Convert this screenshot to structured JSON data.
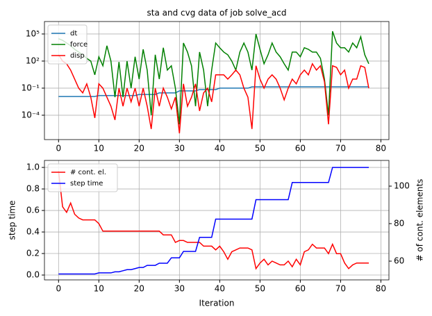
{
  "chart_data": [
    {
      "type": "line",
      "title": "sta and cvg data of job solve_acd",
      "x": [
        0,
        1,
        2,
        3,
        4,
        5,
        6,
        7,
        8,
        9,
        10,
        11,
        12,
        13,
        14,
        15,
        16,
        17,
        18,
        19,
        20,
        21,
        22,
        23,
        24,
        25,
        26,
        27,
        28,
        29,
        30,
        31,
        32,
        33,
        34,
        35,
        36,
        37,
        38,
        39,
        40,
        41,
        42,
        43,
        44,
        45,
        46,
        47,
        48,
        49,
        50,
        51,
        52,
        53,
        54,
        55,
        56,
        57,
        58,
        59,
        60,
        61,
        62,
        63,
        64,
        65,
        66,
        67,
        68,
        69,
        70,
        71,
        72,
        73,
        74,
        75,
        76,
        77
      ],
      "xlim": [
        -3.5,
        82
      ],
      "xticks": [
        0,
        10,
        20,
        30,
        40,
        50,
        60,
        70,
        80
      ],
      "ylim": [
        2e-07,
        2400000.0
      ],
      "yscale": "log",
      "yticks": [
        {
          "value": 0.0001,
          "label": "10⁻⁴"
        },
        {
          "value": 0.1,
          "label": "10⁻¹"
        },
        {
          "value": 100,
          "label": "10²"
        },
        {
          "value": 100000,
          "label": "10⁵"
        }
      ],
      "grid": true,
      "legend": "upper left",
      "series": [
        {
          "name": "dt",
          "color": "#1f77b4",
          "values": [
            0.012,
            0.012,
            0.012,
            0.012,
            0.012,
            0.012,
            0.012,
            0.012,
            0.012,
            0.012,
            0.015,
            0.015,
            0.015,
            0.015,
            0.015,
            0.015,
            0.015,
            0.015,
            0.015,
            0.015,
            0.02,
            0.02,
            0.02,
            0.02,
            0.02,
            0.03,
            0.03,
            0.03,
            0.03,
            0.03,
            0.05,
            0.05,
            0.05,
            0.05,
            0.05,
            0.07,
            0.07,
            0.07,
            0.07,
            0.07,
            0.1,
            0.1,
            0.1,
            0.1,
            0.1,
            0.1,
            0.1,
            0.1,
            0.14,
            0.14,
            0.14,
            0.14,
            0.14,
            0.14,
            0.14,
            0.14,
            0.14,
            0.14,
            0.14,
            0.14,
            0.14,
            0.14,
            0.14,
            0.14,
            0.14,
            0.14,
            0.14,
            0.14,
            0.14,
            0.14,
            0.14,
            0.14,
            0.14,
            0.14,
            0.14,
            0.14,
            0.14,
            0.14
          ]
        },
        {
          "name": "force",
          "color": "green",
          "values": [
            30000.0,
            20000.0,
            10000.0,
            5000.0,
            2000.0,
            1000.0,
            500.0,
            200.0,
            100.0,
            3,
            300.0,
            30,
            5000.0,
            100.0,
            0.01,
            80,
            0.01,
            100.0,
            0.1,
            300.0,
            1,
            2000.0,
            10,
            0.0001,
            500.0,
            1,
            3000.0,
            10,
            30,
            0.1,
            1e-05,
            10000.0,
            1000.0,
            30,
            0.001,
            1000.0,
            10,
            0.001,
            10,
            10000.0,
            3000.0,
            1000.0,
            500.0,
            100.0,
            10,
            1000.0,
            10000.0,
            1000.0,
            10,
            100000.0,
            2000.0,
            50,
            500.0,
            10000.0,
            1000.0,
            300.0,
            50,
            10,
            1000.0,
            1000.0,
            300.0,
            3000.0,
            2000.0,
            1000.0,
            1000.0,
            200.0,
            1,
            0.0001,
            200000.0,
            10000.0,
            3000.0,
            3000.0,
            1000.0,
            10000.0,
            3000.0,
            50000.0,
            500.0,
            50
          ]
        },
        {
          "name": "disp",
          "color": "red",
          "values": [
            500.0,
            100.0,
            50,
            10,
            1,
            0.1,
            0.03,
            0.3,
            0.01,
            5e-05,
            0.3,
            0.1,
            0.01,
            0.001,
            3e-05,
            0.1,
            0.001,
            0.1,
            0.003,
            0.1,
            0.001,
            0.1,
            0.001,
            3e-06,
            0.1,
            0.001,
            0.1,
            0.01,
            0.0005,
            0.01,
            1e-06,
            0.3,
            0.001,
            0.01,
            0.3,
            0.0003,
            0.03,
            0.1,
            0.003,
            3,
            3,
            3,
            1,
            3,
            10,
            3,
            0.1,
            0.01,
            3e-06,
            30,
            1,
            0.1,
            1,
            3,
            1,
            0.1,
            0.005,
            0.1,
            1,
            0.3,
            3,
            10,
            3,
            50,
            10,
            30,
            0.5,
            1e-05,
            30,
            20,
            3,
            10,
            0.1,
            1,
            1,
            30,
            20,
            0.1
          ]
        }
      ]
    },
    {
      "type": "line",
      "xlabel": "Iteration",
      "ylabel": "step time",
      "y2label": "# of cont. elements",
      "x": [
        0,
        1,
        2,
        3,
        4,
        5,
        6,
        7,
        8,
        9,
        10,
        11,
        12,
        13,
        14,
        15,
        16,
        17,
        18,
        19,
        20,
        21,
        22,
        23,
        24,
        25,
        26,
        27,
        28,
        29,
        30,
        31,
        32,
        33,
        34,
        35,
        36,
        37,
        38,
        39,
        40,
        41,
        42,
        43,
        44,
        45,
        46,
        47,
        48,
        49,
        50,
        51,
        52,
        53,
        54,
        55,
        56,
        57,
        58,
        59,
        60,
        61,
        62,
        63,
        64,
        65,
        66,
        67,
        68,
        69,
        70,
        71,
        72,
        73,
        74,
        75,
        76,
        77
      ],
      "xlim": [
        -3.5,
        82
      ],
      "xticks": [
        0,
        10,
        20,
        30,
        40,
        50,
        60,
        70,
        80
      ],
      "ylim": [
        -0.045,
        1.065
      ],
      "yticks": [
        {
          "value": 0,
          "label": "0.0"
        },
        0.2,
        0.4,
        0.6,
        0.8,
        {
          "value": 1,
          "label": "1.0"
        }
      ],
      "y2lim": [
        50,
        113.7
      ],
      "y2ticks": [
        60,
        80,
        100
      ],
      "grid": true,
      "legend": "upper left",
      "series": [
        {
          "name": "# cont. el.",
          "color": "red",
          "axis": "y2",
          "values": [
            108,
            89,
            86,
            91,
            85,
            83,
            82,
            82,
            82,
            82,
            80,
            76,
            76,
            76,
            76,
            76,
            76,
            76,
            76,
            76,
            76,
            76,
            76,
            76,
            76,
            76,
            74,
            74,
            74,
            70,
            71,
            71,
            70,
            70,
            70,
            70,
            68,
            68,
            68,
            66,
            68,
            65,
            61,
            65,
            66,
            67,
            67,
            67,
            66,
            56,
            59,
            61,
            58,
            60,
            59,
            58,
            58,
            60,
            57,
            61,
            58,
            65,
            66,
            69,
            67,
            67,
            67,
            64,
            69,
            64,
            64,
            59,
            56,
            58,
            59,
            59,
            59,
            59
          ]
        },
        {
          "name": "step time",
          "color": "blue",
          "values": [
            0.01,
            0.01,
            0.01,
            0.01,
            0.01,
            0.01,
            0.01,
            0.01,
            0.01,
            0.01,
            0.02,
            0.02,
            0.02,
            0.02,
            0.03,
            0.03,
            0.04,
            0.05,
            0.05,
            0.06,
            0.07,
            0.07,
            0.09,
            0.09,
            0.09,
            0.11,
            0.11,
            0.11,
            0.16,
            0.16,
            0.16,
            0.22,
            0.22,
            0.22,
            0.22,
            0.35,
            0.35,
            0.35,
            0.35,
            0.52,
            0.52,
            0.52,
            0.52,
            0.52,
            0.52,
            0.52,
            0.52,
            0.52,
            0.52,
            0.7,
            0.7,
            0.7,
            0.7,
            0.7,
            0.7,
            0.7,
            0.7,
            0.7,
            0.86,
            0.86,
            0.86,
            0.86,
            0.86,
            0.86,
            0.86,
            0.86,
            0.86,
            0.86,
            1,
            1,
            1,
            1,
            1,
            1,
            1,
            1,
            1,
            1
          ]
        }
      ]
    }
  ]
}
